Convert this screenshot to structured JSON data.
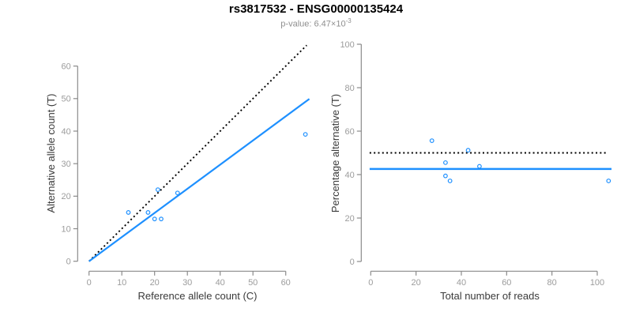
{
  "header": {
    "title": "rs3817532 - ENSG00000135424",
    "p_value_text": "p-value: 6.47×10",
    "p_value_exponent": "-3"
  },
  "colors": {
    "accent_blue": "#1E90FF",
    "dotted_black": "#000000",
    "axis_line_gray": "#8a8a8a",
    "tick_label_gray": "#9c9c9c",
    "axis_title_gray": "#3a3a3a"
  },
  "chart_data": [
    {
      "type": "scatter",
      "panel": "left",
      "xlabel": "Reference allele count (C)",
      "ylabel": "Alternative allele count (T)",
      "xticks": [
        0,
        10,
        20,
        30,
        40,
        50,
        60
      ],
      "yticks": [
        0,
        10,
        20,
        30,
        40,
        50,
        60
      ],
      "xlim": [
        -2.6,
        68.6
      ],
      "ylim": [
        -2.6,
        68.6
      ],
      "grid": false,
      "points": [
        {
          "x": 12,
          "y": 15
        },
        {
          "x": 18,
          "y": 15
        },
        {
          "x": 20,
          "y": 13
        },
        {
          "x": 22,
          "y": 13
        },
        {
          "x": 21,
          "y": 22
        },
        {
          "x": 27,
          "y": 21
        },
        {
          "x": 66,
          "y": 39
        }
      ],
      "lines": [
        {
          "name": "identity-line",
          "style": "dotted",
          "color": "#000000",
          "width": 1.9,
          "x1": 0,
          "y1": 0,
          "x2": 66.4,
          "y2": 66.4
        },
        {
          "name": "fit-line",
          "style": "solid",
          "color": "#1E90FF",
          "width": 2.2,
          "x1": 0,
          "y1": 0,
          "x2": 67.2,
          "y2": 49.9
        }
      ]
    },
    {
      "type": "scatter",
      "panel": "right",
      "xlabel": "Total number of reads",
      "ylabel": "Percentage alternative (T)",
      "xticks": [
        0,
        20,
        40,
        60,
        80,
        100
      ],
      "yticks": [
        0,
        20,
        40,
        60,
        80,
        100
      ],
      "xlim": [
        -4.2,
        109.2
      ],
      "ylim": [
        0,
        100
      ],
      "grid": false,
      "points": [
        {
          "x": 27,
          "y": 55.6
        },
        {
          "x": 33,
          "y": 45.5
        },
        {
          "x": 33,
          "y": 39.4
        },
        {
          "x": 35,
          "y": 37.1
        },
        {
          "x": 43,
          "y": 51.2
        },
        {
          "x": 48,
          "y": 43.8
        },
        {
          "x": 105,
          "y": 37.1
        }
      ],
      "lines": [
        {
          "name": "null-expectation-line",
          "style": "dotted",
          "color": "#000000",
          "width": 1.9,
          "x1": -0.5,
          "y1": 50,
          "x2": 104.2,
          "y2": 50
        },
        {
          "name": "mean-ratio-line",
          "style": "solid",
          "color": "#1E90FF",
          "width": 2.5,
          "x1": -0.5,
          "y1": 42.6,
          "x2": 106.3,
          "y2": 42.6
        }
      ]
    }
  ]
}
